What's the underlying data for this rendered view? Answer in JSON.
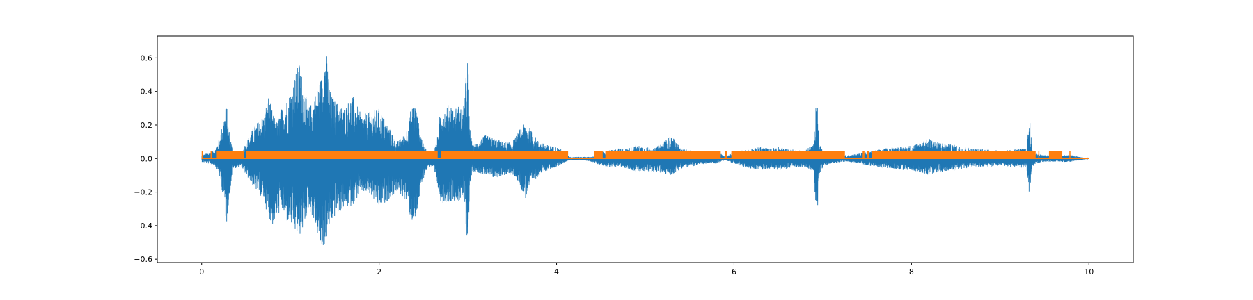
{
  "chart_data": {
    "type": "line",
    "title": "",
    "xlabel": "",
    "ylabel": "",
    "xlim": [
      -0.5,
      10.5
    ],
    "ylim": [
      -0.62,
      0.73
    ],
    "x_ticks": [
      0,
      2,
      4,
      6,
      8,
      10
    ],
    "y_ticks": [
      -0.6,
      -0.4,
      -0.2,
      0.0,
      0.2,
      0.4,
      0.6
    ],
    "x_tick_labels": [
      "0",
      "2",
      "4",
      "6",
      "8",
      "10"
    ],
    "y_tick_labels": [
      "−0.6",
      "−0.4",
      "−0.2",
      "0.0",
      "0.2",
      "0.4",
      "0.6"
    ],
    "grid": false,
    "legend": "none",
    "series": [
      {
        "color": "#1f77b4",
        "kind": "waveform",
        "duration": 10.0,
        "envelope_x": [
          0.0,
          0.15,
          0.2,
          0.25,
          0.28,
          0.3,
          0.35,
          0.45,
          0.5,
          0.6,
          0.7,
          0.75,
          0.8,
          0.85,
          0.9,
          0.95,
          1.0,
          1.05,
          1.1,
          1.15,
          1.2,
          1.25,
          1.3,
          1.35,
          1.4,
          1.45,
          1.5,
          1.6,
          1.7,
          1.8,
          1.9,
          2.0,
          2.1,
          2.2,
          2.3,
          2.35,
          2.4,
          2.45,
          2.5,
          2.55,
          2.6,
          2.65,
          2.7,
          2.75,
          2.8,
          2.85,
          2.9,
          2.95,
          3.0,
          3.02,
          3.05,
          3.1,
          3.2,
          3.3,
          3.4,
          3.5,
          3.55,
          3.6,
          3.65,
          3.7,
          3.8,
          3.9,
          4.0,
          4.1,
          4.15,
          4.2,
          4.3,
          4.4,
          4.5,
          4.6,
          4.7,
          4.8,
          4.9,
          5.0,
          5.1,
          5.2,
          5.3,
          5.4,
          5.5,
          5.6,
          5.7,
          5.8,
          5.85,
          5.9,
          6.0,
          6.1,
          6.2,
          6.3,
          6.4,
          6.5,
          6.6,
          6.7,
          6.8,
          6.9,
          6.93,
          6.96,
          7.0,
          7.1,
          7.2,
          7.3,
          7.4,
          7.5,
          7.6,
          7.7,
          7.8,
          7.9,
          8.0,
          8.1,
          8.2,
          8.3,
          8.4,
          8.5,
          8.6,
          8.7,
          8.8,
          8.9,
          9.0,
          9.1,
          9.2,
          9.3,
          9.33,
          9.36,
          9.4,
          9.5,
          9.6,
          9.7,
          9.8,
          9.9,
          10.0
        ],
        "envelope_max": [
          0.02,
          0.05,
          0.12,
          0.25,
          0.33,
          0.2,
          0.05,
          0.04,
          0.1,
          0.2,
          0.26,
          0.38,
          0.28,
          0.22,
          0.3,
          0.35,
          0.4,
          0.5,
          0.58,
          0.45,
          0.3,
          0.35,
          0.42,
          0.5,
          0.67,
          0.4,
          0.35,
          0.3,
          0.38,
          0.26,
          0.28,
          0.3,
          0.2,
          0.1,
          0.15,
          0.28,
          0.35,
          0.2,
          0.08,
          0.05,
          0.04,
          0.1,
          0.33,
          0.3,
          0.34,
          0.3,
          0.32,
          0.3,
          0.64,
          0.2,
          0.08,
          0.1,
          0.14,
          0.12,
          0.1,
          0.1,
          0.14,
          0.19,
          0.21,
          0.18,
          0.1,
          0.08,
          0.07,
          0.04,
          0.01,
          0.01,
          0.01,
          0.01,
          0.04,
          0.05,
          0.06,
          0.06,
          0.08,
          0.07,
          0.06,
          0.1,
          0.14,
          0.06,
          0.05,
          0.04,
          0.04,
          0.04,
          0.03,
          0.01,
          0.04,
          0.05,
          0.06,
          0.07,
          0.06,
          0.07,
          0.06,
          0.05,
          0.05,
          0.09,
          0.44,
          0.1,
          0.05,
          0.03,
          0.02,
          0.02,
          0.03,
          0.04,
          0.05,
          0.06,
          0.07,
          0.07,
          0.08,
          0.1,
          0.12,
          0.1,
          0.09,
          0.08,
          0.07,
          0.06,
          0.06,
          0.05,
          0.05,
          0.05,
          0.06,
          0.06,
          0.27,
          0.05,
          0.03,
          0.02,
          0.02,
          0.02,
          0.02,
          0.01,
          0.0
        ],
        "envelope_min": [
          -0.02,
          -0.04,
          -0.1,
          -0.25,
          -0.4,
          -0.3,
          -0.06,
          -0.05,
          -0.1,
          -0.18,
          -0.25,
          -0.35,
          -0.4,
          -0.35,
          -0.3,
          -0.38,
          -0.4,
          -0.45,
          -0.47,
          -0.42,
          -0.3,
          -0.35,
          -0.45,
          -0.57,
          -0.5,
          -0.4,
          -0.35,
          -0.3,
          -0.28,
          -0.2,
          -0.22,
          -0.3,
          -0.25,
          -0.2,
          -0.25,
          -0.35,
          -0.42,
          -0.25,
          -0.12,
          -0.05,
          -0.05,
          -0.15,
          -0.27,
          -0.26,
          -0.26,
          -0.25,
          -0.26,
          -0.24,
          -0.53,
          -0.2,
          -0.08,
          -0.08,
          -0.1,
          -0.12,
          -0.1,
          -0.1,
          -0.12,
          -0.18,
          -0.24,
          -0.17,
          -0.1,
          -0.07,
          -0.05,
          -0.02,
          -0.01,
          -0.01,
          -0.01,
          -0.02,
          -0.04,
          -0.05,
          -0.05,
          -0.06,
          -0.08,
          -0.08,
          -0.08,
          -0.09,
          -0.1,
          -0.06,
          -0.05,
          -0.04,
          -0.03,
          -0.03,
          -0.02,
          -0.01,
          -0.03,
          -0.05,
          -0.06,
          -0.07,
          -0.06,
          -0.07,
          -0.06,
          -0.05,
          -0.05,
          -0.08,
          -0.42,
          -0.1,
          -0.05,
          -0.03,
          -0.02,
          -0.02,
          -0.03,
          -0.04,
          -0.05,
          -0.06,
          -0.06,
          -0.07,
          -0.07,
          -0.08,
          -0.1,
          -0.08,
          -0.08,
          -0.07,
          -0.06,
          -0.05,
          -0.05,
          -0.05,
          -0.04,
          -0.05,
          -0.05,
          -0.06,
          -0.26,
          -0.05,
          -0.03,
          -0.02,
          -0.02,
          -0.02,
          -0.02,
          -0.01,
          0.0
        ]
      },
      {
        "color": "#ff7f0e",
        "kind": "activity-mask",
        "high": 0.045,
        "low": 0.0,
        "segments": [
          [
            0.0,
            0.01
          ],
          [
            0.1,
            0.12
          ],
          [
            0.17,
            0.48
          ],
          [
            0.5,
            2.66
          ],
          [
            2.7,
            4.13
          ],
          [
            4.42,
            4.52
          ],
          [
            4.55,
            5.85
          ],
          [
            5.9,
            5.92
          ],
          [
            5.97,
            7.25
          ],
          [
            7.45,
            7.47
          ],
          [
            7.5,
            7.52
          ],
          [
            7.55,
            9.4
          ],
          [
            9.43,
            9.44
          ],
          [
            9.55,
            9.7
          ],
          [
            9.78,
            9.79
          ]
        ]
      }
    ]
  }
}
